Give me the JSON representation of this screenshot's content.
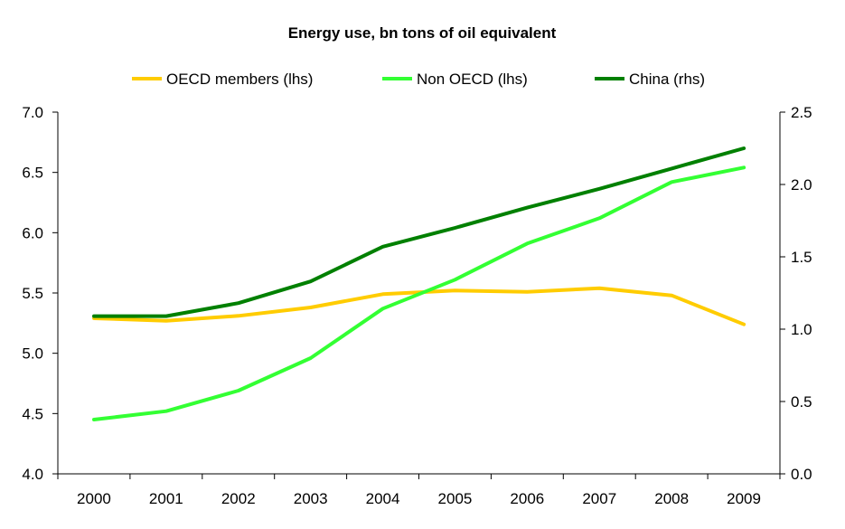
{
  "chart_data": {
    "type": "line",
    "title": "Energy use, bn tons of oil equivalent",
    "legend_position": "top",
    "grid": false,
    "x": [
      "2000",
      "2001",
      "2002",
      "2003",
      "2004",
      "2005",
      "2006",
      "2007",
      "2008",
      "2009"
    ],
    "y_left": {
      "range": [
        4.0,
        7.0
      ],
      "ticks": [
        "4.0",
        "4.5",
        "5.0",
        "5.5",
        "6.0",
        "6.5",
        "7.0"
      ]
    },
    "y_right": {
      "range": [
        0.0,
        2.5
      ],
      "ticks": [
        "0.0",
        "0.5",
        "1.0",
        "1.5",
        "2.0",
        "2.5"
      ]
    },
    "series": [
      {
        "name": "OECD members (lhs)",
        "axis": "left",
        "color": "#ffcc00",
        "values": [
          5.29,
          5.27,
          5.31,
          5.38,
          5.49,
          5.52,
          5.51,
          5.54,
          5.48,
          5.24
        ]
      },
      {
        "name": "Non OECD (lhs)",
        "axis": "left",
        "color": "#33ff33",
        "values": [
          4.45,
          4.52,
          4.69,
          4.96,
          5.37,
          5.61,
          5.91,
          6.12,
          6.42,
          6.54
        ]
      },
      {
        "name": "China (rhs)",
        "axis": "right",
        "color": "#008000",
        "values": [
          1.09,
          1.09,
          1.18,
          1.33,
          1.57,
          1.7,
          1.84,
          1.97,
          2.11,
          2.25
        ]
      }
    ]
  }
}
